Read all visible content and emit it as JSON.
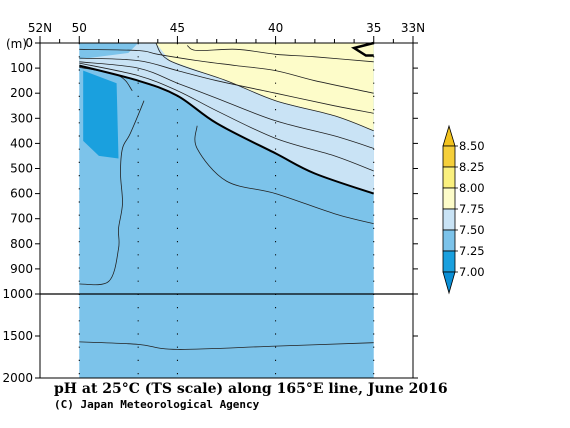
{
  "chart_data": {
    "type": "heatmap",
    "title": "pH at 25°C (TS scale) along 165°E line, June 2016",
    "credit": "(C) Japan Meteorological Agency",
    "ylabel": "(m)",
    "x_axis": {
      "range_lat_N": [
        52,
        33
      ],
      "tick_labels": [
        {
          "lat": 52,
          "label": "52N"
        },
        {
          "lat": 50,
          "label": "50"
        },
        {
          "lat": 45,
          "label": "45"
        },
        {
          "lat": 40,
          "label": "40"
        },
        {
          "lat": 35,
          "label": "35"
        },
        {
          "lat": 33,
          "label": "33N"
        }
      ],
      "minor_ticks_lat": [
        51,
        49,
        48,
        47,
        46,
        44,
        43,
        42,
        41,
        39,
        38,
        37,
        36,
        34
      ],
      "station_lines_lat": [
        50,
        47,
        45,
        40,
        35
      ]
    },
    "y_axis": {
      "upper_panel": {
        "range_m": [
          0,
          1000
        ],
        "tick_values": [
          0,
          100,
          200,
          300,
          400,
          500,
          600,
          700,
          800,
          900,
          1000
        ]
      },
      "lower_panel": {
        "range_m": [
          1000,
          2000
        ],
        "tick_values": [
          1500,
          2000
        ]
      },
      "tick_labels": [
        "0",
        "100",
        "200",
        "300",
        "400",
        "500",
        "600",
        "700",
        "800",
        "900",
        "1000",
        "1500",
        "2000"
      ]
    },
    "data_extent_lat": [
      50,
      35
    ],
    "levels": [
      7.0,
      7.25,
      7.5,
      7.75,
      8.0,
      8.25,
      8.5
    ],
    "colorbar": {
      "labels": [
        "8.50",
        "8.25",
        "8.00",
        "7.75",
        "7.50",
        "7.25",
        "7.00"
      ],
      "bins": [
        {
          "lo": 8.25,
          "hi": 8.5,
          "color": "#f5cf3a"
        },
        {
          "lo": 8.0,
          "hi": 8.25,
          "color": "#faf07e"
        },
        {
          "lo": 7.75,
          "hi": 8.0,
          "color": "#fdfcc9"
        },
        {
          "lo": 7.5,
          "hi": 7.75,
          "color": "#c9e3f5"
        },
        {
          "lo": 7.25,
          "hi": 7.5,
          "color": "#7cc3ea"
        },
        {
          "lo": 7.0,
          "hi": 7.25,
          "color": "#1aa0de"
        }
      ],
      "over_color": "#f2c21d",
      "under_color": "#0a8fd6"
    },
    "fill_regions": [
      {
        "name": "yellow-surface-8.0-8.25",
        "color": "#fdfcc9",
        "points": [
          [
            46.1,
            0
          ],
          [
            35,
            0
          ],
          [
            35,
            350
          ],
          [
            37,
            290
          ],
          [
            40,
            230
          ],
          [
            42.5,
            150
          ],
          [
            45.4,
            70
          ],
          [
            46.1,
            0
          ]
        ]
      },
      {
        "name": "light-blue-7.5-7.75",
        "color": "#c9e3f5",
        "points": [
          [
            47.0,
            0
          ],
          [
            46.1,
            0
          ],
          [
            45.4,
            70
          ],
          [
            42.5,
            150
          ],
          [
            40,
            230
          ],
          [
            37,
            290
          ],
          [
            35,
            350
          ],
          [
            35,
            600
          ],
          [
            38,
            520
          ],
          [
            40,
            440
          ],
          [
            43,
            320
          ],
          [
            45,
            210
          ],
          [
            47,
            150
          ],
          [
            50,
            90
          ],
          [
            50,
            65
          ],
          [
            47.5,
            40
          ],
          [
            47.0,
            0
          ]
        ]
      },
      {
        "name": "dark-blue-7.0-7.25",
        "color": "#1aa0de",
        "points": [
          [
            49.8,
            110
          ],
          [
            48.1,
            160
          ],
          [
            48.0,
            460
          ],
          [
            49.0,
            450
          ],
          [
            49.8,
            390
          ]
        ]
      }
    ],
    "base_fill_color": "#7cc3ea",
    "top_strip_color": "#ffffff",
    "thick_contour_7_5": [
      [
        50,
        90
      ],
      [
        47,
        150
      ],
      [
        45,
        210
      ],
      [
        43,
        320
      ],
      [
        40,
        440
      ],
      [
        38,
        520
      ],
      [
        35,
        600
      ]
    ],
    "contours": [
      [
        [
          35,
          350
        ],
        [
          37,
          290
        ],
        [
          40,
          230
        ],
        [
          42.5,
          150
        ],
        [
          45.4,
          70
        ],
        [
          46.1,
          0
        ]
      ],
      [
        [
          35,
          75
        ],
        [
          38,
          55
        ],
        [
          40,
          45
        ],
        [
          42,
          25
        ],
        [
          44,
          30
        ],
        [
          44.5,
          10
        ]
      ],
      [
        [
          50,
          25
        ],
        [
          47,
          30
        ],
        [
          46,
          45
        ],
        [
          44,
          70
        ],
        [
          42,
          90
        ],
        [
          40,
          110
        ],
        [
          38,
          150
        ],
        [
          35,
          200
        ]
      ],
      [
        [
          50,
          60
        ],
        [
          47,
          70
        ],
        [
          45,
          110
        ],
        [
          43,
          150
        ],
        [
          40,
          200
        ],
        [
          37,
          250
        ],
        [
          35,
          280
        ]
      ],
      [
        [
          50,
          75
        ],
        [
          47,
          100
        ],
        [
          45,
          160
        ],
        [
          43,
          220
        ],
        [
          40,
          310
        ],
        [
          37,
          370
        ],
        [
          35,
          420
        ]
      ],
      [
        [
          50,
          80
        ],
        [
          47,
          130
        ],
        [
          45,
          190
        ],
        [
          43,
          270
        ],
        [
          40,
          380
        ],
        [
          37,
          450
        ],
        [
          35,
          510
        ]
      ],
      [
        [
          50,
          97
        ],
        [
          48,
          130
        ],
        [
          47.3,
          190
        ]
      ],
      [
        [
          50,
          960
        ],
        [
          48.5,
          950
        ],
        [
          48.0,
          820
        ],
        [
          48.0,
          740
        ],
        [
          47.8,
          640
        ],
        [
          47.9,
          520
        ],
        [
          47.8,
          420
        ],
        [
          47.4,
          360
        ],
        [
          46.7,
          230
        ]
      ],
      [
        [
          44.0,
          330
        ],
        [
          44.0,
          420
        ],
        [
          42.5,
          550
        ],
        [
          40,
          600
        ],
        [
          37,
          680
        ],
        [
          35,
          720
        ]
      ],
      [
        [
          50,
          1570
        ],
        [
          47,
          1600
        ],
        [
          45,
          1660
        ],
        [
          40,
          1620
        ],
        [
          35,
          1580
        ]
      ]
    ],
    "surface_hook": [
      [
        35.0,
        0
      ],
      [
        36.0,
        20
      ],
      [
        35.4,
        50
      ],
      [
        35.0,
        50
      ]
    ],
    "divider_depth_m": 1000,
    "grid": false
  }
}
